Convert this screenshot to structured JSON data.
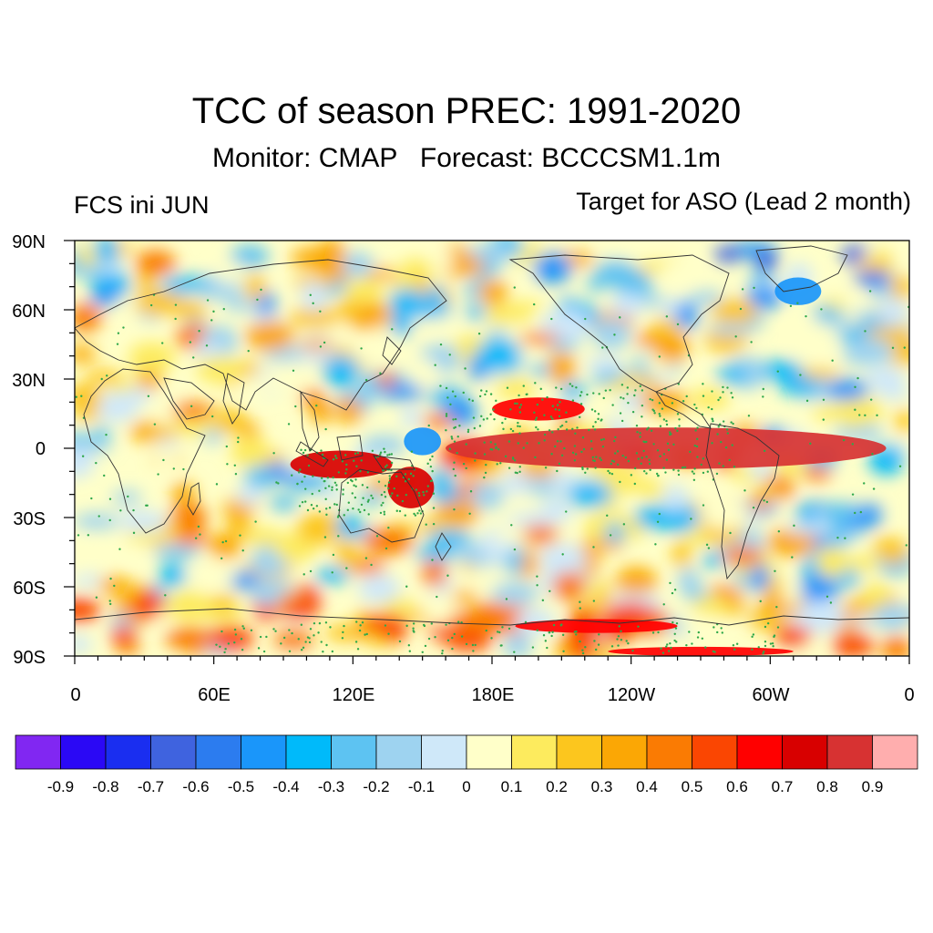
{
  "title": "TCC of season PREC: 1991-2020",
  "subtitle": "Monitor: CMAP   Forecast: BCCCSM1.1m",
  "left_label": "FCS ini JUN",
  "right_label": "Target for ASO (Lead 2 month)",
  "map": {
    "projection": "cylindrical-equidistant",
    "center_longitude": 180,
    "lat_range": [
      -90,
      90
    ],
    "lon_range": [
      0,
      360
    ],
    "lat_labels": [
      "90N",
      "60N",
      "30N",
      "0",
      "30S",
      "60S",
      "90S"
    ],
    "lon_labels": [
      "0",
      "60E",
      "120E",
      "180E",
      "120W",
      "60W",
      "0"
    ],
    "stippling": "green dots mark significant correlations",
    "field_highlights": [
      {
        "region": "central-eastern equatorial Pacific",
        "level": 0.9
      },
      {
        "region": "Maritime Continent / northern Australia",
        "level": 0.7
      },
      {
        "region": "tropical North Pacific near 15N",
        "level": 0.6
      },
      {
        "region": "Antarctic coast 180E-60W",
        "level": 0.6
      },
      {
        "region": "equatorial western Pacific near 150E",
        "level": -0.5
      },
      {
        "region": "Greenland / North Atlantic",
        "level": -0.4
      }
    ]
  },
  "colorbar": {
    "labels": [
      "-0.9",
      "-0.8",
      "-0.7",
      "-0.6",
      "-0.5",
      "-0.4",
      "-0.3",
      "-0.2",
      "-0.1",
      "0",
      "0.1",
      "0.2",
      "0.3",
      "0.4",
      "0.5",
      "0.6",
      "0.7",
      "0.8",
      "0.9"
    ],
    "colors": [
      "#8127f2",
      "#2b08f5",
      "#1a2ef0",
      "#3f63df",
      "#2c7cef",
      "#1a96fa",
      "#00bafa",
      "#5dc3f2",
      "#9ed3f0",
      "#cfe8f9",
      "#ffffc9",
      "#fdeb5e",
      "#fcc61e",
      "#fba705",
      "#fa7b03",
      "#fa4602",
      "#ff0000",
      "#d80000",
      "#d73232",
      "#ffaeae"
    ]
  }
}
